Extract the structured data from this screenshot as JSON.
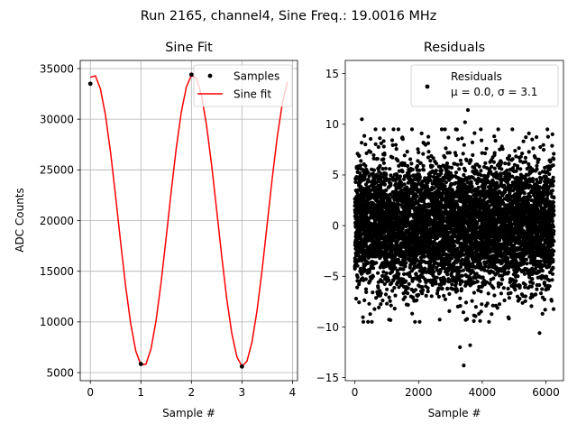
{
  "suptitle": "Run 2165, channel4, Sine Freq.: 19.0016 MHz",
  "colors": {
    "fit": "#ff0000",
    "samples": "#000000",
    "grid": "#b0b0b0"
  },
  "chart_data": [
    {
      "type": "line",
      "title": "Sine Fit",
      "xlabel": "Sample #",
      "ylabel": "ADC Counts",
      "xlim": [
        -0.2,
        4.1
      ],
      "ylim": [
        4200,
        35800
      ],
      "xticks": [
        0,
        1,
        2,
        3,
        4
      ],
      "yticks": [
        5000,
        10000,
        15000,
        20000,
        25000,
        30000,
        35000
      ],
      "grid": true,
      "legend_position": "top-right",
      "legend": {
        "samples": "Samples",
        "fit": "Sine fit"
      },
      "fit_params": {
        "offset": 20000,
        "amplitude": 14400,
        "period": 1.97,
        "phase_sample": 0.06
      },
      "samples": {
        "x": [
          0,
          1,
          2,
          3
        ],
        "y": [
          33500,
          5850,
          34400,
          5600
        ]
      }
    },
    {
      "type": "scatter",
      "title": "Residuals",
      "xlabel": "Sample #",
      "ylabel": "",
      "xlim": [
        -300,
        6550
      ],
      "ylim": [
        -15.3,
        16.3
      ],
      "xticks": [
        0,
        2000,
        4000,
        6000
      ],
      "yticks": [
        -15,
        -10,
        -5,
        0,
        5,
        10,
        15
      ],
      "grid": false,
      "legend_position": "top-right",
      "legend": {
        "label": "Residuals",
        "stats": "μ = 0.0, σ = 3.1"
      },
      "n_points": 6250,
      "mean": 0.0,
      "sigma": 3.1,
      "seed": 2165,
      "highlighted": [
        {
          "x": 3420,
          "y": -13.8
        },
        {
          "x": 3460,
          "y": 10.2
        },
        {
          "x": 220,
          "y": 10.5
        },
        {
          "x": 3550,
          "y": 11.4
        },
        {
          "x": 3620,
          "y": -11.8
        },
        {
          "x": 5800,
          "y": -10.6
        },
        {
          "x": 3300,
          "y": -12.0
        }
      ]
    }
  ]
}
